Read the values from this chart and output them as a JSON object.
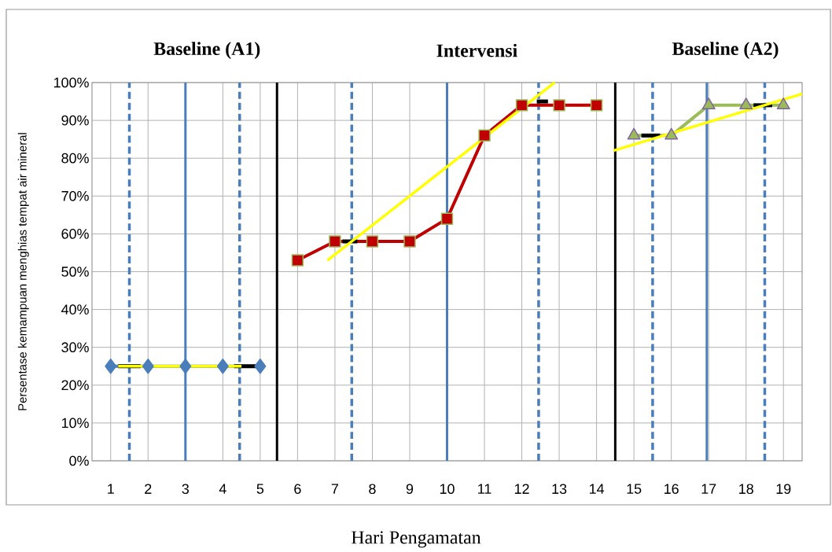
{
  "chart_data": {
    "type": "line",
    "xlabel": "Hari Pengamatan",
    "ylabel": "Persentase kemampuan menghias tempat air mineral",
    "annotations": [
      "Baseline (A1)",
      "Intervensi",
      "Baseline (A2)"
    ],
    "xlim": [
      0.5,
      19.5
    ],
    "xticks": [
      1,
      2,
      3,
      4,
      5,
      6,
      7,
      8,
      9,
      10,
      11,
      12,
      13,
      14,
      15,
      16,
      17,
      18,
      19
    ],
    "ylim": [
      0,
      100
    ],
    "yticks": [
      {
        "value": 0,
        "label": "0%"
      },
      {
        "value": 10,
        "label": "10%"
      },
      {
        "value": 20,
        "label": "20%"
      },
      {
        "value": 30,
        "label": "30%"
      },
      {
        "value": 40,
        "label": "40%"
      },
      {
        "value": 50,
        "label": "50%"
      },
      {
        "value": 60,
        "label": "60%"
      },
      {
        "value": 70,
        "label": "70%"
      },
      {
        "value": 80,
        "label": "80%"
      },
      {
        "value": 90,
        "label": "90%"
      },
      {
        "value": 100,
        "label": "100%"
      }
    ],
    "grid": true,
    "series": [
      {
        "color": "#4a7ebb",
        "marker": "diamond",
        "x": [
          1,
          2,
          3,
          4,
          5
        ],
        "values": [
          25,
          25,
          25,
          25,
          25
        ]
      },
      {
        "color": "#c00000",
        "marker": "square",
        "x": [
          6,
          7,
          8,
          9,
          10,
          11,
          12,
          13,
          14
        ],
        "values": [
          53,
          58,
          58,
          58,
          64,
          86,
          94,
          94,
          94
        ]
      },
      {
        "color": "#9bbb59",
        "marker": "triangle",
        "x": [
          15,
          16,
          17,
          18,
          19
        ],
        "values": [
          86,
          86,
          94,
          94,
          94
        ]
      },
      {
        "color": "#000000",
        "marker": "none",
        "x": [
          1.2,
          1.8
        ],
        "values": [
          25,
          25
        ]
      },
      {
        "color": "#000000",
        "marker": "none",
        "x": [
          4.3,
          4.9
        ],
        "values": [
          25,
          25
        ]
      },
      {
        "color": "#000000",
        "marker": "none",
        "x": [
          7.2,
          7.6
        ],
        "values": [
          58,
          58
        ]
      },
      {
        "color": "#000000",
        "marker": "none",
        "x": [
          12.4,
          12.7
        ],
        "values": [
          95,
          95
        ]
      },
      {
        "color": "#000000",
        "marker": "none",
        "x": [
          15.2,
          15.7
        ],
        "values": [
          86,
          86
        ]
      },
      {
        "color": "#000000",
        "marker": "none",
        "x": [
          18.2,
          18.7
        ],
        "values": [
          94,
          94
        ]
      },
      {
        "color": "#ffff00",
        "marker": "none",
        "x": [
          1.2,
          4.5
        ],
        "values": [
          25,
          25
        ]
      },
      {
        "color": "#ffff00",
        "marker": "none",
        "x": [
          6.8,
          12.88
        ],
        "values": [
          53,
          100
        ]
      },
      {
        "color": "#ffff00",
        "marker": "none",
        "x": [
          14.45,
          19.5
        ],
        "values": [
          82,
          97
        ]
      }
    ],
    "ref_lines": [
      {
        "axis": "x",
        "value": 5.45,
        "color": "#000000",
        "line_style": "solid"
      },
      {
        "axis": "x",
        "value": 14.5,
        "color": "#000000",
        "line_style": "solid"
      },
      {
        "axis": "x",
        "value": 1.5,
        "color": "#4a7ebb",
        "line_style": "dashed"
      },
      {
        "axis": "x",
        "value": 3,
        "color": "#4a7ebb",
        "line_style": "solid"
      },
      {
        "axis": "x",
        "value": 4.45,
        "color": "#4a7ebb",
        "line_style": "dashed"
      },
      {
        "axis": "x",
        "value": 7.45,
        "color": "#4a7ebb",
        "line_style": "dashed"
      },
      {
        "axis": "x",
        "value": 10,
        "color": "#4a7ebb",
        "line_style": "solid"
      },
      {
        "axis": "x",
        "value": 12.45,
        "color": "#4a7ebb",
        "line_style": "dashed"
      },
      {
        "axis": "x",
        "value": 15.5,
        "color": "#4a7ebb",
        "line_style": "dashed"
      },
      {
        "axis": "x",
        "value": 16.95,
        "color": "#4a7ebb",
        "line_style": "solid"
      },
      {
        "axis": "x",
        "value": 18.5,
        "color": "#4a7ebb",
        "line_style": "dashed"
      }
    ]
  }
}
